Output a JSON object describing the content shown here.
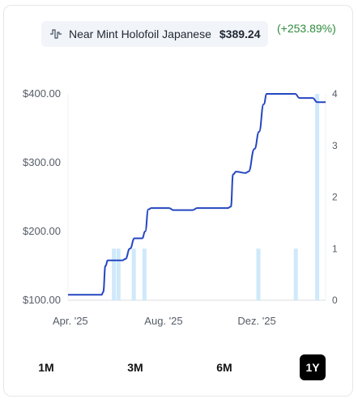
{
  "header": {
    "product": "Near Mint Holofoil Japanese",
    "price": "$389.24",
    "change": "(+253.89%)",
    "icon": "pulse-line-icon"
  },
  "ranges": [
    {
      "label": "1M",
      "active": false
    },
    {
      "label": "3M",
      "active": false
    },
    {
      "label": "6M",
      "active": false
    },
    {
      "label": "1Y",
      "active": true
    }
  ],
  "colors": {
    "line": "#2446c0",
    "bars": "#cfe9fb",
    "change": "#2e8b3d"
  },
  "chart_data": {
    "type": "line",
    "title": "",
    "xlabel": "",
    "ylabel": "",
    "x_range": [
      "2025-03-29",
      "2026-03-01"
    ],
    "x_ticks": [
      {
        "label": "Apr. '25",
        "date": "2025-04-01"
      },
      {
        "label": "Aug. '25",
        "date": "2025-08-01"
      },
      {
        "label": "Dez. '25",
        "date": "2025-12-01"
      }
    ],
    "ylim": [
      100,
      400
    ],
    "y_ticks": [
      "$100.00",
      "$200.00",
      "$300.00",
      "$400.00"
    ],
    "y_tick_values": [
      100,
      200,
      300,
      400
    ],
    "y2lim": [
      0,
      4
    ],
    "y2_ticks": [
      "0",
      "1",
      "2",
      "3",
      "4"
    ],
    "y2_tick_values": [
      0,
      1,
      2,
      3,
      4
    ],
    "grid": false,
    "series": [
      {
        "type": "line",
        "points": [
          [
            "2025-03-29",
            108
          ],
          [
            "2025-05-12",
            108
          ],
          [
            "2025-05-14",
            112
          ],
          [
            "2025-05-17",
            150
          ],
          [
            "2025-05-20",
            158
          ],
          [
            "2025-06-08",
            158
          ],
          [
            "2025-06-12",
            160
          ],
          [
            "2025-06-18",
            175
          ],
          [
            "2025-06-24",
            190
          ],
          [
            "2025-07-04",
            190
          ],
          [
            "2025-07-08",
            200
          ],
          [
            "2025-07-12",
            232
          ],
          [
            "2025-07-16",
            234
          ],
          [
            "2025-08-08",
            234
          ],
          [
            "2025-08-14",
            231
          ],
          [
            "2025-09-08",
            231
          ],
          [
            "2025-09-14",
            234
          ],
          [
            "2025-10-24",
            234
          ],
          [
            "2025-10-28",
            236
          ],
          [
            "2025-10-31",
            283
          ],
          [
            "2025-11-04",
            287
          ],
          [
            "2025-11-16",
            285
          ],
          [
            "2025-11-20",
            287
          ],
          [
            "2025-11-28",
            320
          ],
          [
            "2025-12-04",
            345
          ],
          [
            "2025-12-10",
            385
          ],
          [
            "2025-12-14",
            400
          ],
          [
            "2026-01-20",
            400
          ],
          [
            "2026-01-26",
            394
          ],
          [
            "2026-02-12",
            394
          ],
          [
            "2026-02-18",
            388
          ],
          [
            "2026-03-01",
            388
          ]
        ]
      },
      {
        "type": "bar",
        "axis": "y2",
        "points": [
          [
            "2025-05-28",
            1
          ],
          [
            "2025-06-03",
            1
          ],
          [
            "2025-06-23",
            1
          ],
          [
            "2025-07-07",
            1
          ],
          [
            "2025-12-03",
            1
          ],
          [
            "2026-01-21",
            1
          ],
          [
            "2026-02-18",
            4
          ]
        ]
      }
    ]
  }
}
